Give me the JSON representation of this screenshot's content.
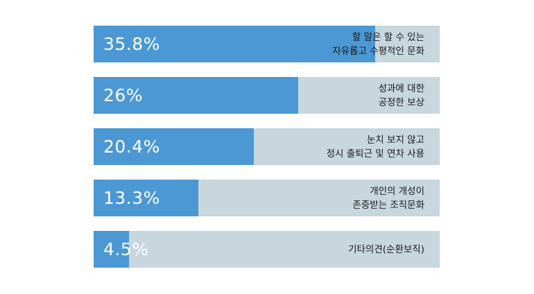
{
  "chart_data": {
    "type": "bar",
    "orientation": "horizontal",
    "categories": [
      "할 말은 할 수 있는\n자유롭고 수평적인 문화",
      "성과에 대한\n공정한 보상",
      "눈치 보지 않고\n정시 출퇴근 및 연차 사용",
      "개인의 개성이\n존중받는 조직문화",
      "기타의견(순환보직)"
    ],
    "values": [
      35.8,
      26,
      20.4,
      13.3,
      4.5
    ],
    "value_labels": [
      "35.8%",
      "26%",
      "20.4%",
      "13.3%",
      "4.5%"
    ],
    "xlim": [
      0,
      44
    ],
    "grid": false,
    "legend": "none"
  },
  "colors": {
    "bar": "#4b98d4",
    "track": "#c8d6de",
    "value_text": "#ffffff",
    "category_text": "#1a1a1a"
  }
}
